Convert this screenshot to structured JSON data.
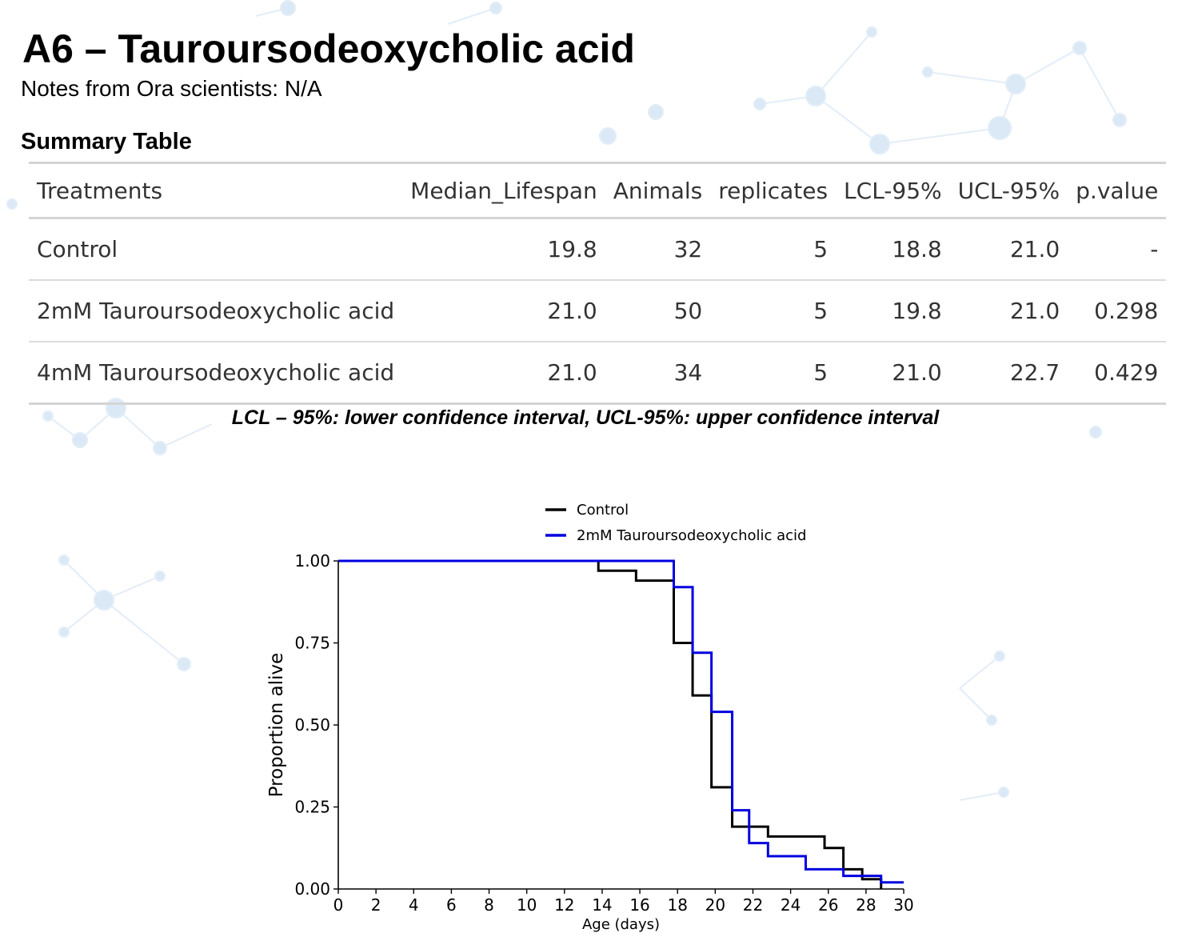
{
  "header": {
    "title": "A6 – Tauroursodeoxycholic acid",
    "notes": "Notes from Ora scientists: N/A"
  },
  "summary": {
    "heading": "Summary Table",
    "columns": [
      "Treatments",
      "Median_Lifespan",
      "Animals",
      "replicates",
      "LCL-95%",
      "UCL-95%",
      "p.value"
    ],
    "rows": [
      [
        "Control",
        "19.8",
        "32",
        "5",
        "18.8",
        "21.0",
        "-"
      ],
      [
        "2mM Tauroursodeoxycholic acid",
        "21.0",
        "50",
        "5",
        "19.8",
        "21.0",
        "0.298"
      ],
      [
        "4mM Tauroursodeoxycholic acid",
        "21.0",
        "34",
        "5",
        "21.0",
        "22.7",
        "0.429"
      ]
    ],
    "caption": "LCL – 95%: lower confidence interval, UCL-95%: upper confidence interval"
  },
  "chart_data": {
    "type": "line",
    "step": true,
    "xlabel": "Age (days)",
    "ylabel": "Proportion alive",
    "xlim": [
      0,
      30
    ],
    "ylim": [
      0,
      1
    ],
    "xticks": [
      "0",
      "2",
      "4",
      "6",
      "8",
      "10",
      "12",
      "14",
      "16",
      "18",
      "20",
      "22",
      "24",
      "26",
      "28",
      "30"
    ],
    "yticks": [
      "0.00",
      "0.25",
      "0.50",
      "0.75",
      "1.00"
    ],
    "grid": false,
    "legend_position": "top",
    "series": [
      {
        "name": "Control",
        "color": "#000000",
        "x": [
          0,
          13.8,
          15.8,
          17.8,
          18.8,
          19.8,
          20.9,
          21.8,
          22.8,
          25.8,
          26.8,
          27.8,
          28.8
        ],
        "y": [
          1.0,
          0.97,
          0.94,
          0.75,
          0.59,
          0.31,
          0.19,
          0.19,
          0.16,
          0.125,
          0.06,
          0.03,
          0.0
        ]
      },
      {
        "name": "2mM Tauroursodeoxycholic acid",
        "color": "#0000e0",
        "x": [
          0,
          17.8,
          18.8,
          19.8,
          20.9,
          21.8,
          22.8,
          24.8,
          26.8,
          28.8,
          30
        ],
        "y": [
          1.0,
          0.92,
          0.72,
          0.54,
          0.24,
          0.14,
          0.1,
          0.06,
          0.04,
          0.02,
          0.02
        ]
      }
    ]
  }
}
